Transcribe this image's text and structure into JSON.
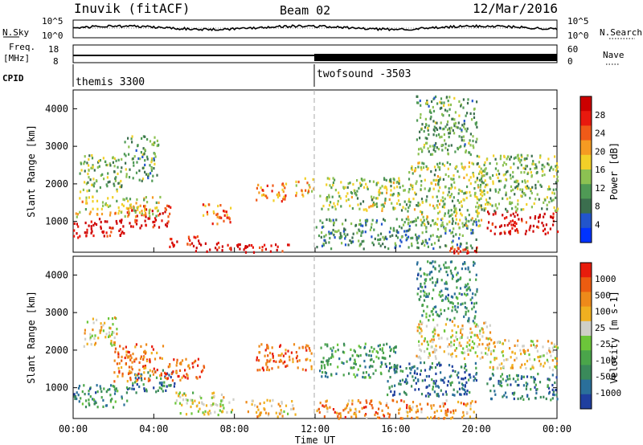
{
  "header": {
    "site": "Inuvik (fitACF)",
    "beam": "Beam 02",
    "date": "12/Mar/2016"
  },
  "strip": {
    "nsky_label": "N.Sky",
    "nsky_ticks": [
      "10^5",
      "10^0"
    ],
    "nsearch_label": "N.Search",
    "nsearch_ticks": [
      "10^5",
      "10^0"
    ],
    "freq_label_1": "Freq.",
    "freq_label_2": "[MHz]",
    "freq_ticks": [
      "18",
      "8"
    ],
    "nave_label": "Nave",
    "nave_ticks": [
      "60",
      "0"
    ],
    "cpid_label": "CPID",
    "cpid_programs": [
      {
        "name": "themis 3300",
        "start_hour": 0
      },
      {
        "name": "twofsound -3503",
        "start_hour": 12
      }
    ]
  },
  "chart_data": [
    {
      "type": "heatmap",
      "panel": "power",
      "ylabel": "Slant Range [km]",
      "colorbar_label": "Power [dB]",
      "colorbar_ticks": [
        "28",
        "24",
        "20",
        "16",
        "12",
        "8",
        "4"
      ],
      "colorbar_colors": [
        "#0033ff",
        "#2255cc",
        "#3b6e4e",
        "#4f9a55",
        "#8cc152",
        "#f2d028",
        "#f59b22",
        "#f05a18",
        "#e8190e",
        "#cc0000"
      ],
      "ylim": [
        180,
        4500
      ],
      "yticks": [
        1000,
        2000,
        3000,
        4000
      ],
      "x_range_hours": [
        0,
        24
      ],
      "clusters": [
        {
          "t0": 0.0,
          "t1": 2.6,
          "r0": 600,
          "r1": 1100,
          "level": 0.95
        },
        {
          "t0": 2.6,
          "t1": 4.8,
          "r0": 850,
          "r1": 1450,
          "level": 0.85
        },
        {
          "t0": 0.1,
          "t1": 4.3,
          "r0": 1150,
          "r1": 1700,
          "level": 0.55
        },
        {
          "t0": 4.7,
          "t1": 6.2,
          "r0": 350,
          "r1": 650,
          "level": 0.9
        },
        {
          "t0": 6.0,
          "t1": 8.5,
          "r0": 220,
          "r1": 460,
          "level": 0.95
        },
        {
          "t0": 8.5,
          "t1": 10.8,
          "r0": 200,
          "r1": 420,
          "level": 0.9
        },
        {
          "t0": 6.4,
          "t1": 7.8,
          "r0": 950,
          "r1": 1500,
          "level": 0.75
        },
        {
          "t0": 9.0,
          "t1": 10.6,
          "r0": 1550,
          "r1": 2050,
          "level": 0.7
        },
        {
          "t0": 11.0,
          "t1": 11.9,
          "r0": 1700,
          "r1": 2200,
          "level": 0.6
        },
        {
          "t0": 2.5,
          "t1": 4.2,
          "r0": 2100,
          "r1": 3300,
          "level": 0.35
        },
        {
          "t0": 0.3,
          "t1": 2.4,
          "r0": 1800,
          "r1": 2800,
          "level": 0.4
        },
        {
          "t0": 12.2,
          "t1": 16.5,
          "r0": 1300,
          "r1": 2200,
          "level": 0.45
        },
        {
          "t0": 12.0,
          "t1": 20.0,
          "r0": 300,
          "r1": 1100,
          "level": 0.3
        },
        {
          "t0": 16.5,
          "t1": 20.5,
          "r0": 900,
          "r1": 2600,
          "level": 0.45
        },
        {
          "t0": 20.5,
          "t1": 24.0,
          "r0": 700,
          "r1": 1300,
          "level": 0.95
        },
        {
          "t0": 20.0,
          "t1": 24.0,
          "r0": 1300,
          "r1": 2800,
          "level": 0.4
        },
        {
          "t0": 17.0,
          "t1": 20.0,
          "r0": 2800,
          "r1": 4400,
          "level": 0.35
        },
        {
          "t0": 18.5,
          "t1": 20.0,
          "r0": 180,
          "r1": 350,
          "level": 0.85
        }
      ]
    },
    {
      "type": "heatmap",
      "panel": "velocity",
      "ylabel": "Slant Range [km]",
      "colorbar_label": "Velocity [m s-1]",
      "colorbar_ticks": [
        "1000",
        "500",
        "100",
        "25",
        "-25",
        "-100",
        "-500",
        "-1000"
      ],
      "colorbar_colors": [
        "#1f3f9f",
        "#2a6f9a",
        "#3a8a5a",
        "#4aa54a",
        "#6cc63a",
        "#cfcfc8",
        "#f0b020",
        "#ee8a1a",
        "#ec5c10",
        "#e81c0c"
      ],
      "ylim": [
        180,
        4500
      ],
      "yticks": [
        1000,
        2000,
        3000,
        4000
      ],
      "xticks": [
        "00:00",
        "04:00",
        "08:00",
        "12:00",
        "16:00",
        "20:00",
        "00:00"
      ],
      "xlabel": "Time UT",
      "x_range_hours": [
        0,
        24
      ],
      "clusters": [
        {
          "t0": 0.0,
          "t1": 2.8,
          "r0": 500,
          "r1": 1100,
          "level": 0.25
        },
        {
          "t0": 2.8,
          "t1": 5.0,
          "r0": 900,
          "r1": 1500,
          "level": 0.2
        },
        {
          "t0": 2.0,
          "t1": 4.5,
          "r0": 1200,
          "r1": 2200,
          "level": 0.8
        },
        {
          "t0": 4.5,
          "t1": 6.5,
          "r0": 1200,
          "r1": 1800,
          "level": 0.85
        },
        {
          "t0": 5.0,
          "t1": 8.0,
          "r0": 300,
          "r1": 900,
          "level": 0.55
        },
        {
          "t0": 8.5,
          "t1": 11.0,
          "r0": 250,
          "r1": 700,
          "level": 0.65
        },
        {
          "t0": 9.0,
          "t1": 11.8,
          "r0": 1500,
          "r1": 2200,
          "level": 0.85
        },
        {
          "t0": 0.5,
          "t1": 2.2,
          "r0": 2100,
          "r1": 2900,
          "level": 0.6
        },
        {
          "t0": 12.2,
          "t1": 16.0,
          "r0": 1300,
          "r1": 2200,
          "level": 0.3
        },
        {
          "t0": 15.5,
          "t1": 20.0,
          "r0": 800,
          "r1": 1700,
          "level": 0.15
        },
        {
          "t0": 17.0,
          "t1": 21.0,
          "r0": 1800,
          "r1": 2800,
          "level": 0.6
        },
        {
          "t0": 20.5,
          "t1": 24.0,
          "r0": 1500,
          "r1": 2300,
          "level": 0.6
        },
        {
          "t0": 20.5,
          "t1": 24.0,
          "r0": 700,
          "r1": 1400,
          "level": 0.2
        },
        {
          "t0": 17.0,
          "t1": 20.0,
          "r0": 2800,
          "r1": 4400,
          "level": 0.25
        },
        {
          "t0": 12.0,
          "t1": 20.0,
          "r0": 200,
          "r1": 700,
          "level": 0.75
        }
      ]
    }
  ]
}
